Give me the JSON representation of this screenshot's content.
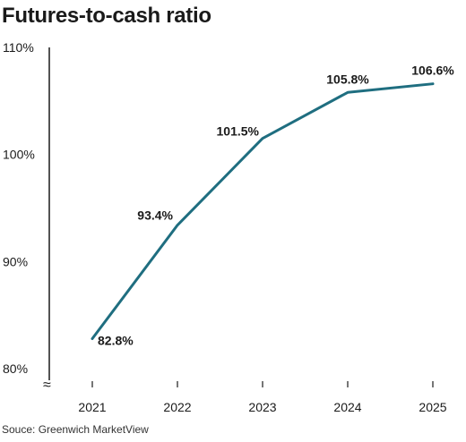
{
  "chart_data": {
    "type": "line",
    "title": "Futures-to-cash ratio",
    "x": [
      "2021",
      "2022",
      "2023",
      "2024",
      "2025"
    ],
    "series": [
      {
        "values": [
          82.8,
          93.4,
          101.5,
          105.8,
          106.6
        ],
        "labels": [
          "82.8%",
          "93.4%",
          "101.5%",
          "105.8%",
          "106.6%"
        ]
      }
    ],
    "yticks": [
      80,
      90,
      100,
      110
    ],
    "ytick_labels": [
      "80%",
      "90%",
      "100%",
      "110%"
    ],
    "ylim": [
      80,
      110
    ],
    "axis_break_symbol": "≈",
    "grid": false,
    "line_color": "#1f6e80",
    "source": "Souce: Greenwich MarketView"
  }
}
